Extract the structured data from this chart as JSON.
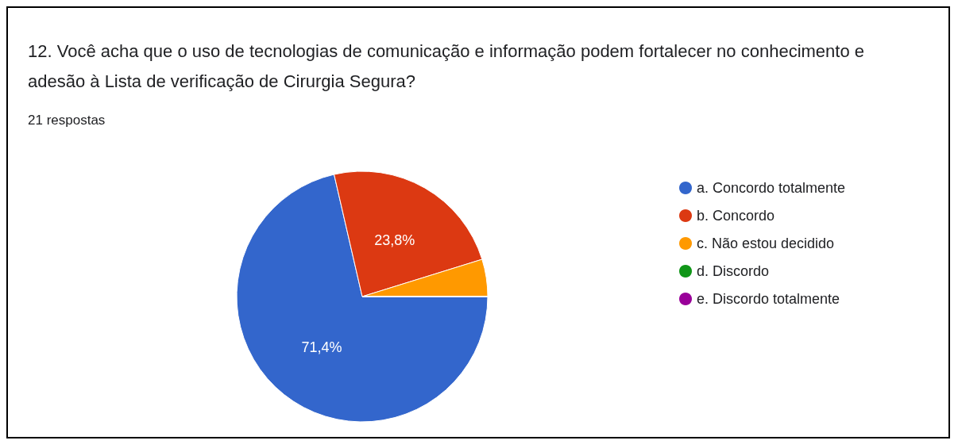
{
  "chart_data": {
    "type": "pie",
    "title": "12. Você acha que o uso de tecnologias de comunicação e informação podem fortalecer no conhecimento e adesão à Lista de verificação de Cirurgia Segura?",
    "subtitle": "21 respostas",
    "categories": [
      "a. Concordo totalmente",
      "b. Concordo",
      "c. Não estou decidido",
      "d. Discordo",
      "e. Discordo totalmente"
    ],
    "values": [
      71.4,
      23.8,
      4.8,
      0,
      0
    ],
    "colors": [
      "#3366cc",
      "#dc3912",
      "#ff9900",
      "#109618",
      "#990099"
    ],
    "value_labels": [
      "71,4%",
      "23,8%",
      null,
      null,
      null
    ],
    "legend": "right"
  }
}
